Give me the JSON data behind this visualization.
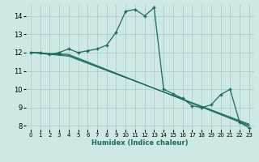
{
  "xlabel": "Humidex (Indice chaleur)",
  "background_color": "#cde8e5",
  "grid_color": "#aed0cc",
  "line_color": "#1a6b5e",
  "xlim": [
    -0.5,
    23.5
  ],
  "ylim": [
    7.8,
    14.6
  ],
  "yticks": [
    8,
    9,
    10,
    11,
    12,
    13,
    14
  ],
  "xticks": [
    0,
    1,
    2,
    3,
    4,
    5,
    6,
    7,
    8,
    9,
    10,
    11,
    12,
    13,
    14,
    15,
    16,
    17,
    18,
    19,
    20,
    21,
    22,
    23
  ],
  "lines": [
    {
      "x": [
        0,
        1,
        2,
        3,
        4,
        5,
        6,
        7,
        8,
        9,
        10,
        11,
        12,
        13,
        14,
        15,
        16,
        17,
        18,
        19,
        20,
        21,
        22,
        23
      ],
      "y": [
        12.0,
        12.0,
        11.9,
        12.0,
        12.2,
        12.0,
        12.1,
        12.2,
        12.4,
        13.1,
        14.25,
        14.35,
        14.0,
        14.45,
        10.0,
        9.75,
        9.5,
        9.1,
        9.0,
        9.15,
        9.7,
        10.0,
        8.2,
        7.9
      ],
      "has_markers": true
    },
    {
      "x": [
        0,
        4,
        23
      ],
      "y": [
        12.0,
        11.9,
        8.0
      ],
      "has_markers": false
    },
    {
      "x": [
        0,
        4,
        23
      ],
      "y": [
        12.0,
        11.85,
        8.05
      ],
      "has_markers": false
    },
    {
      "x": [
        0,
        4,
        23
      ],
      "y": [
        12.0,
        11.8,
        8.1
      ],
      "has_markers": false
    }
  ]
}
